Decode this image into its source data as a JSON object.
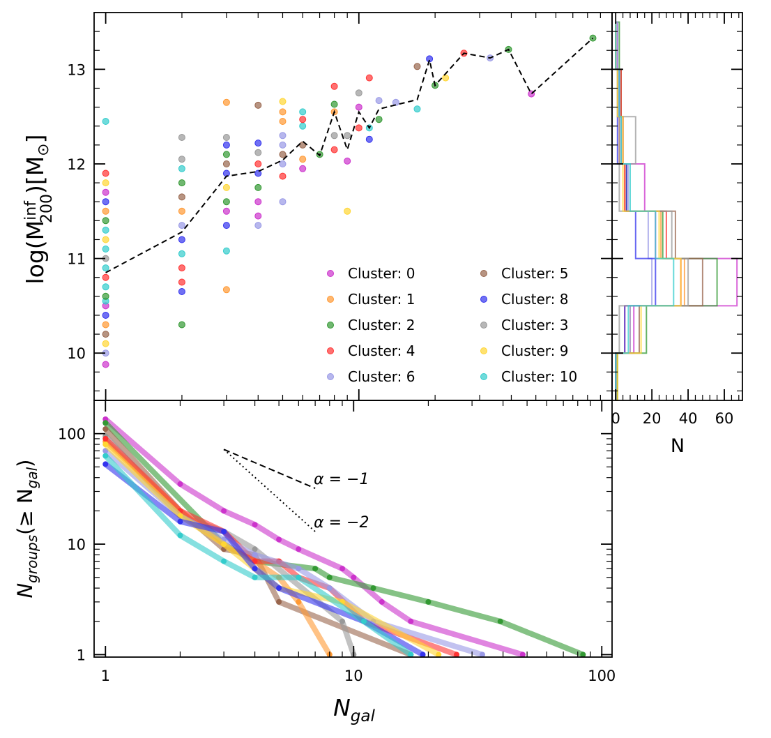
{
  "chart_data": {
    "type": "multi-panel",
    "colors": {
      "0": "#cc33cc",
      "1": "#ff9933",
      "2": "#339933",
      "4": "#ff3333",
      "6": "#9999e6",
      "5": "#99664d",
      "8": "#3333ee",
      "3": "#999999",
      "9": "#ffd633",
      "10": "#33cccc"
    },
    "scatter": {
      "type": "scatter",
      "ylabel_main": "log(M",
      "ylabel_sup": "inf",
      "ylabel_sub": "200",
      "ylabel_unit": ")[M",
      "ylabel_sun": "⊙",
      "ylabel_end": "]",
      "xscale": "log",
      "xlim": [
        0.9,
        100
      ],
      "ylim": [
        9.5,
        13.6
      ],
      "yticks": [
        10,
        11,
        12,
        13
      ],
      "ytick_labels": [
        "10",
        "11",
        "12",
        "13"
      ],
      "legend_location": "lower-right",
      "legend": [
        {
          "label": "Cluster: 0",
          "cluster": "0"
        },
        {
          "label": "Cluster: 1",
          "cluster": "1"
        },
        {
          "label": "Cluster: 2",
          "cluster": "2"
        },
        {
          "label": "Cluster: 4",
          "cluster": "4"
        },
        {
          "label": "Cluster: 6",
          "cluster": "6"
        },
        {
          "label": "Cluster: 5",
          "cluster": "5"
        },
        {
          "label": "Cluster: 8",
          "cluster": "8"
        },
        {
          "label": "Cluster: 3",
          "cluster": "3"
        },
        {
          "label": "Cluster: 9",
          "cluster": "9"
        },
        {
          "label": "Cluster: 10",
          "cluster": "10"
        }
      ],
      "median": {
        "x": [
          1,
          2,
          3,
          4,
          5,
          6,
          7,
          8,
          9,
          10,
          11,
          12,
          17,
          19,
          20,
          26,
          33,
          39,
          48,
          84
        ],
        "y": [
          10.85,
          11.28,
          11.87,
          11.92,
          12.04,
          12.24,
          12.09,
          12.55,
          12.15,
          12.55,
          12.38,
          12.58,
          12.68,
          13.1,
          12.83,
          13.17,
          13.12,
          13.21,
          12.74,
          13.33
        ]
      },
      "points": [
        {
          "x": 1,
          "y": 9.88,
          "c": "0"
        },
        {
          "x": 1,
          "y": 10.0,
          "c": "6"
        },
        {
          "x": 1,
          "y": 10.1,
          "c": "9"
        },
        {
          "x": 1,
          "y": 10.2,
          "c": "5"
        },
        {
          "x": 1,
          "y": 10.3,
          "c": "1"
        },
        {
          "x": 1,
          "y": 10.4,
          "c": "8"
        },
        {
          "x": 1,
          "y": 10.5,
          "c": "0"
        },
        {
          "x": 1,
          "y": 10.55,
          "c": "10"
        },
        {
          "x": 1,
          "y": 10.6,
          "c": "2"
        },
        {
          "x": 1,
          "y": 10.7,
          "c": "10"
        },
        {
          "x": 1,
          "y": 10.8,
          "c": "4"
        },
        {
          "x": 1,
          "y": 10.9,
          "c": "10"
        },
        {
          "x": 1,
          "y": 11.0,
          "c": "3"
        },
        {
          "x": 1,
          "y": 11.1,
          "c": "10"
        },
        {
          "x": 1,
          "y": 11.2,
          "c": "9"
        },
        {
          "x": 1,
          "y": 11.3,
          "c": "10"
        },
        {
          "x": 1,
          "y": 11.4,
          "c": "2"
        },
        {
          "x": 1,
          "y": 11.5,
          "c": "1"
        },
        {
          "x": 1,
          "y": 11.6,
          "c": "8"
        },
        {
          "x": 1,
          "y": 11.7,
          "c": "0"
        },
        {
          "x": 1,
          "y": 11.8,
          "c": "9"
        },
        {
          "x": 1,
          "y": 11.9,
          "c": "4"
        },
        {
          "x": 1,
          "y": 12.45,
          "c": "10"
        },
        {
          "x": 2,
          "y": 10.3,
          "c": "2"
        },
        {
          "x": 2,
          "y": 10.65,
          "c": "8"
        },
        {
          "x": 2,
          "y": 10.75,
          "c": "4"
        },
        {
          "x": 2,
          "y": 10.9,
          "c": "4"
        },
        {
          "x": 2,
          "y": 11.05,
          "c": "10"
        },
        {
          "x": 2,
          "y": 11.2,
          "c": "8"
        },
        {
          "x": 2,
          "y": 11.35,
          "c": "6"
        },
        {
          "x": 2,
          "y": 11.5,
          "c": "1"
        },
        {
          "x": 2,
          "y": 11.65,
          "c": "5"
        },
        {
          "x": 2,
          "y": 11.8,
          "c": "2"
        },
        {
          "x": 2,
          "y": 11.95,
          "c": "10"
        },
        {
          "x": 2,
          "y": 12.05,
          "c": "3"
        },
        {
          "x": 2,
          "y": 12.28,
          "c": "3"
        },
        {
          "x": 3,
          "y": 10.67,
          "c": "1"
        },
        {
          "x": 3,
          "y": 11.08,
          "c": "10"
        },
        {
          "x": 3,
          "y": 11.35,
          "c": "8"
        },
        {
          "x": 3,
          "y": 11.5,
          "c": "0"
        },
        {
          "x": 3,
          "y": 11.6,
          "c": "2"
        },
        {
          "x": 3,
          "y": 11.75,
          "c": "9"
        },
        {
          "x": 3,
          "y": 11.9,
          "c": "8"
        },
        {
          "x": 3,
          "y": 12.0,
          "c": "5"
        },
        {
          "x": 3,
          "y": 12.1,
          "c": "2"
        },
        {
          "x": 3,
          "y": 12.2,
          "c": "8"
        },
        {
          "x": 3,
          "y": 12.28,
          "c": "3"
        },
        {
          "x": 3,
          "y": 12.65,
          "c": "1"
        },
        {
          "x": 4,
          "y": 11.35,
          "c": "6"
        },
        {
          "x": 4,
          "y": 11.45,
          "c": "0"
        },
        {
          "x": 4,
          "y": 11.6,
          "c": "0"
        },
        {
          "x": 4,
          "y": 11.75,
          "c": "2"
        },
        {
          "x": 4,
          "y": 11.9,
          "c": "8"
        },
        {
          "x": 4,
          "y": 12.0,
          "c": "4"
        },
        {
          "x": 4,
          "y": 12.12,
          "c": "3"
        },
        {
          "x": 4,
          "y": 12.22,
          "c": "8"
        },
        {
          "x": 4,
          "y": 12.62,
          "c": "5"
        },
        {
          "x": 5,
          "y": 11.6,
          "c": "6"
        },
        {
          "x": 5,
          "y": 11.87,
          "c": "4"
        },
        {
          "x": 5,
          "y": 12.0,
          "c": "6"
        },
        {
          "x": 5,
          "y": 12.1,
          "c": "5"
        },
        {
          "x": 5,
          "y": 12.2,
          "c": "6"
        },
        {
          "x": 5,
          "y": 12.3,
          "c": "6"
        },
        {
          "x": 5,
          "y": 12.45,
          "c": "1"
        },
        {
          "x": 5,
          "y": 12.55,
          "c": "1"
        },
        {
          "x": 5,
          "y": 12.66,
          "c": "9"
        },
        {
          "x": 6,
          "y": 11.95,
          "c": "0"
        },
        {
          "x": 6,
          "y": 12.05,
          "c": "1"
        },
        {
          "x": 6,
          "y": 12.2,
          "c": "5"
        },
        {
          "x": 6,
          "y": 12.4,
          "c": "10"
        },
        {
          "x": 6,
          "y": 12.47,
          "c": "4"
        },
        {
          "x": 6,
          "y": 12.55,
          "c": "10"
        },
        {
          "x": 7,
          "y": 12.1,
          "c": "2"
        },
        {
          "x": 8,
          "y": 12.15,
          "c": "4"
        },
        {
          "x": 8,
          "y": 12.3,
          "c": "3"
        },
        {
          "x": 8,
          "y": 12.55,
          "c": "1"
        },
        {
          "x": 8,
          "y": 12.63,
          "c": "2"
        },
        {
          "x": 8,
          "y": 12.82,
          "c": "4"
        },
        {
          "x": 9,
          "y": 11.5,
          "c": "9"
        },
        {
          "x": 9,
          "y": 12.03,
          "c": "0"
        },
        {
          "x": 9,
          "y": 12.3,
          "c": "3"
        },
        {
          "x": 10,
          "y": 12.38,
          "c": "4"
        },
        {
          "x": 10,
          "y": 12.6,
          "c": "0"
        },
        {
          "x": 10,
          "y": 12.75,
          "c": "3"
        },
        {
          "x": 11,
          "y": 12.26,
          "c": "8"
        },
        {
          "x": 11,
          "y": 12.38,
          "c": "10"
        },
        {
          "x": 11,
          "y": 12.91,
          "c": "4"
        },
        {
          "x": 12,
          "y": 12.47,
          "c": "2"
        },
        {
          "x": 12,
          "y": 12.67,
          "c": "6"
        },
        {
          "x": 14,
          "y": 12.65,
          "c": "6"
        },
        {
          "x": 17,
          "y": 12.58,
          "c": "10"
        },
        {
          "x": 17,
          "y": 13.03,
          "c": "5"
        },
        {
          "x": 19,
          "y": 13.11,
          "c": "8"
        },
        {
          "x": 20,
          "y": 12.83,
          "c": "2"
        },
        {
          "x": 22,
          "y": 12.91,
          "c": "9"
        },
        {
          "x": 26,
          "y": 13.17,
          "c": "4"
        },
        {
          "x": 33,
          "y": 13.12,
          "c": "6"
        },
        {
          "x": 39,
          "y": 13.21,
          "c": "2"
        },
        {
          "x": 48,
          "y": 12.74,
          "c": "0"
        },
        {
          "x": 84,
          "y": 13.33,
          "c": "2"
        }
      ]
    },
    "histogram": {
      "type": "histogram",
      "orientation": "horizontal",
      "xlabel": "N",
      "xlim": [
        -2,
        70
      ],
      "xticks": [
        0,
        20,
        40,
        60
      ],
      "xtick_labels": [
        "0",
        "20",
        "40",
        "60"
      ],
      "bin_edges": [
        9.5,
        10.0,
        10.5,
        11.0,
        11.5,
        12.0,
        12.5,
        13.0,
        13.5
      ],
      "series": [
        {
          "cluster": "0",
          "counts": [
            0,
            10,
            67,
            22,
            16,
            4,
            2,
            1
          ]
        },
        {
          "cluster": "1",
          "counts": [
            1,
            8,
            38,
            25,
            5,
            3,
            2,
            0
          ]
        },
        {
          "cluster": "2",
          "counts": [
            1,
            17,
            56,
            26,
            6,
            4,
            3,
            2
          ]
        },
        {
          "cluster": "4",
          "counts": [
            0,
            5,
            36,
            28,
            5,
            4,
            3,
            0
          ]
        },
        {
          "cluster": "6",
          "counts": [
            0,
            8,
            20,
            18,
            7,
            3,
            2,
            1
          ]
        },
        {
          "cluster": "5",
          "counts": [
            0,
            13,
            48,
            33,
            6,
            2,
            1,
            0
          ]
        },
        {
          "cluster": "8",
          "counts": [
            0,
            5,
            22,
            11,
            6,
            1,
            2,
            0
          ]
        },
        {
          "cluster": "3",
          "counts": [
            0,
            2,
            40,
            31,
            2,
            11,
            1,
            0
          ]
        },
        {
          "cluster": "9",
          "counts": [
            1,
            14,
            36,
            24,
            4,
            4,
            1,
            0
          ]
        },
        {
          "cluster": "10",
          "counts": [
            0,
            7,
            32,
            22,
            8,
            3,
            2,
            0
          ]
        }
      ]
    },
    "cumulative": {
      "type": "line",
      "xlabel_main": "N",
      "xlabel_sub": "gal",
      "ylabel_main": "N",
      "ylabel_sub": "groups",
      "ylabel_rest": "(≥ N",
      "ylabel_sub2": "gal",
      "ylabel_end": ")",
      "xscale": "log",
      "yscale": "log",
      "xlim": [
        0.9,
        110
      ],
      "ylim": [
        0.95,
        200
      ],
      "xticks": [
        1,
        10,
        100
      ],
      "xtick_labels": [
        "1",
        "10",
        "100"
      ],
      "yticks": [
        1,
        10,
        100
      ],
      "ytick_labels": [
        "1",
        "10",
        "100"
      ],
      "annotations": [
        {
          "text": "α = −1",
          "x1": 3,
          "y1": 72,
          "x2": 7,
          "y2": 32,
          "style": "dashed"
        },
        {
          "text": "α = −2",
          "x1": 3,
          "y1": 72,
          "x2": 7,
          "y2": 13,
          "style": "dotted"
        }
      ],
      "series": [
        {
          "cluster": "0",
          "x": [
            1,
            2,
            3,
            4,
            5,
            6,
            9,
            10,
            13,
            17,
            48
          ],
          "y": [
            135,
            35,
            20,
            15,
            11,
            9,
            6,
            5,
            3,
            2,
            1
          ]
        },
        {
          "cluster": "2",
          "x": [
            1,
            3,
            4,
            7,
            8,
            12,
            20,
            39,
            84
          ],
          "y": [
            125,
            10,
            7,
            6,
            5,
            4,
            3,
            2,
            1
          ]
        },
        {
          "cluster": "5",
          "x": [
            1,
            2,
            3,
            4,
            5,
            17
          ],
          "y": [
            110,
            20,
            9,
            8,
            3,
            1
          ]
        },
        {
          "cluster": "3",
          "x": [
            1,
            2,
            3,
            4,
            9,
            10
          ],
          "y": [
            95,
            18,
            13,
            9,
            2,
            1
          ]
        },
        {
          "cluster": "1",
          "x": [
            1,
            2,
            3,
            4,
            5,
            6,
            8
          ],
          "y": [
            85,
            20,
            10,
            7,
            5,
            3,
            1
          ]
        },
        {
          "cluster": "4",
          "x": [
            1,
            2,
            3,
            4,
            5,
            6,
            8,
            11,
            26
          ],
          "y": [
            90,
            20,
            13,
            7,
            7,
            5,
            4,
            2,
            1
          ]
        },
        {
          "cluster": "6",
          "x": [
            1,
            2,
            3,
            4,
            6,
            8,
            12,
            33
          ],
          "y": [
            70,
            18,
            11,
            8,
            6,
            4,
            2,
            1
          ]
        },
        {
          "cluster": "9",
          "x": [
            1,
            2,
            3,
            5,
            9,
            22
          ],
          "y": [
            80,
            18,
            10,
            4,
            3,
            1
          ]
        },
        {
          "cluster": "8",
          "x": [
            1,
            2,
            3,
            4,
            5,
            11,
            19
          ],
          "y": [
            53,
            16,
            13,
            6,
            4,
            2,
            1
          ]
        },
        {
          "cluster": "10",
          "x": [
            1,
            2,
            3,
            4,
            6,
            11,
            17
          ],
          "y": [
            63,
            12,
            7,
            5,
            5,
            2,
            1
          ]
        }
      ]
    }
  }
}
